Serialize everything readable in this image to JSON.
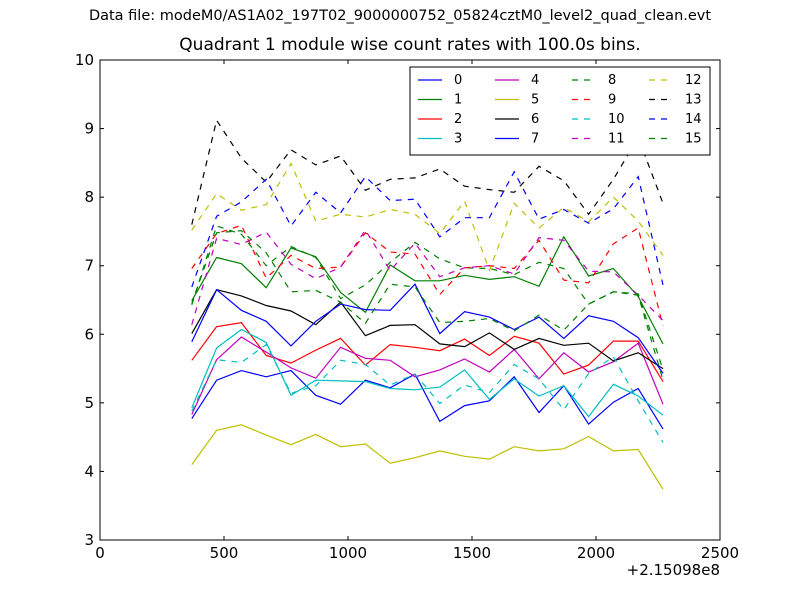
{
  "figure": {
    "suptitle": "Data file: modeM0/AS1A02_197T02_9000000752_05824cztM0_level2_quad_clean.evt"
  },
  "chart_data": {
    "type": "line",
    "title": "Quadrant 1 module wise count rates with 100.0s bins.",
    "xlabel": "",
    "ylabel": "",
    "x_offset_label": "+2.15098e8",
    "xlim": [
      0,
      2500
    ],
    "ylim": [
      3,
      10
    ],
    "xticks": [
      0,
      500,
      1000,
      1500,
      2000,
      2500
    ],
    "yticks": [
      3,
      4,
      5,
      6,
      7,
      8,
      9,
      10
    ],
    "grid": false,
    "legend": {
      "placement": "top-right",
      "columns": 4
    },
    "x": [
      370,
      470,
      570,
      670,
      770,
      870,
      970,
      1070,
      1170,
      1270,
      1370,
      1470,
      1570,
      1670,
      1770,
      1870,
      1970,
      2070,
      2170,
      2270
    ],
    "series": [
      {
        "name": "0",
        "color": "#0000ff",
        "dash": "solid",
        "values": [
          4.77,
          5.33,
          5.47,
          5.38,
          5.47,
          5.11,
          4.98,
          5.33,
          5.22,
          5.42,
          4.73,
          4.96,
          5.03,
          5.38,
          4.86,
          5.25,
          4.69,
          5.01,
          5.21,
          4.62
        ]
      },
      {
        "name": "1",
        "color": "#008000",
        "dash": "solid",
        "values": [
          6.49,
          7.12,
          7.03,
          6.68,
          7.26,
          7.13,
          6.61,
          6.32,
          7.01,
          6.78,
          6.78,
          6.86,
          6.8,
          6.84,
          6.7,
          7.42,
          6.85,
          6.96,
          6.55,
          5.86
        ]
      },
      {
        "name": "2",
        "color": "#ff0000",
        "dash": "solid",
        "values": [
          5.62,
          6.11,
          6.17,
          5.69,
          5.58,
          5.77,
          5.94,
          5.55,
          5.85,
          5.81,
          5.76,
          5.93,
          5.69,
          5.97,
          5.87,
          5.42,
          5.55,
          5.9,
          5.9,
          5.31
        ]
      },
      {
        "name": "3",
        "color": "#00bfbf",
        "dash": "solid",
        "values": [
          4.93,
          5.8,
          6.07,
          5.88,
          5.11,
          5.33,
          5.32,
          5.31,
          5.21,
          5.19,
          5.23,
          5.48,
          5.05,
          5.35,
          5.1,
          5.25,
          4.8,
          5.27,
          5.1,
          4.82
        ]
      },
      {
        "name": "4",
        "color": "#bf00bf",
        "dash": "solid",
        "values": [
          4.83,
          5.63,
          5.96,
          5.74,
          5.51,
          5.36,
          5.81,
          5.65,
          5.62,
          5.38,
          5.48,
          5.64,
          5.45,
          5.78,
          5.35,
          5.73,
          5.45,
          5.6,
          5.87,
          4.98
        ]
      },
      {
        "name": "5",
        "color": "#bfbf00",
        "dash": "solid",
        "values": [
          4.1,
          4.6,
          4.68,
          4.53,
          4.39,
          4.54,
          4.36,
          4.4,
          4.12,
          4.2,
          4.3,
          4.22,
          4.18,
          4.36,
          4.3,
          4.33,
          4.51,
          4.3,
          4.32,
          3.74
        ]
      },
      {
        "name": "6",
        "color": "#000000",
        "dash": "solid",
        "values": [
          6.01,
          6.65,
          6.56,
          6.42,
          6.34,
          6.14,
          6.47,
          5.98,
          6.13,
          6.14,
          5.86,
          5.82,
          6.02,
          5.78,
          5.94,
          5.84,
          5.87,
          5.61,
          5.73,
          5.5
        ]
      },
      {
        "name": "7",
        "color": "#0000ff",
        "dash": "solid",
        "values": [
          5.89,
          6.65,
          6.35,
          6.19,
          5.83,
          6.19,
          6.44,
          6.36,
          6.35,
          6.73,
          6.01,
          6.33,
          6.25,
          6.07,
          6.25,
          5.94,
          6.27,
          6.19,
          5.95,
          5.43
        ]
      },
      {
        "name": "8",
        "color": "#008000",
        "dash": "dashed",
        "values": [
          6.43,
          7.58,
          7.46,
          7.0,
          7.28,
          7.12,
          6.52,
          6.72,
          7.05,
          7.34,
          7.1,
          6.97,
          6.96,
          6.87,
          7.05,
          6.96,
          6.44,
          6.62,
          6.57,
          5.33
        ]
      },
      {
        "name": "9",
        "color": "#ff0000",
        "dash": "dashed",
        "values": [
          6.96,
          7.47,
          7.59,
          6.82,
          7.15,
          6.96,
          6.98,
          7.48,
          7.2,
          7.17,
          6.58,
          6.97,
          7.0,
          6.96,
          7.37,
          6.79,
          6.75,
          7.32,
          7.55,
          6.12
        ]
      },
      {
        "name": "10",
        "color": "#00bfbf",
        "dash": "dashed",
        "values": [
          4.88,
          5.63,
          5.59,
          5.85,
          5.14,
          5.25,
          5.62,
          5.56,
          5.26,
          5.42,
          4.99,
          5.26,
          5.15,
          5.56,
          5.35,
          4.9,
          5.43,
          5.67,
          5.03,
          4.42
        ]
      },
      {
        "name": "11",
        "color": "#bf00bf",
        "dash": "dashed",
        "values": [
          6.14,
          7.4,
          7.31,
          7.49,
          7.02,
          6.81,
          6.98,
          7.52,
          6.93,
          7.33,
          6.84,
          6.97,
          7.0,
          6.88,
          7.41,
          7.37,
          6.92,
          6.91,
          6.57,
          6.2
        ]
      },
      {
        "name": "12",
        "color": "#bfbf00",
        "dash": "dashed",
        "values": [
          7.52,
          8.05,
          7.81,
          7.89,
          8.49,
          7.65,
          7.75,
          7.71,
          7.82,
          7.75,
          7.47,
          7.94,
          6.93,
          7.91,
          7.55,
          7.85,
          7.64,
          8.0,
          7.65,
          7.15
        ]
      },
      {
        "name": "13",
        "color": "#000000",
        "dash": "dashed",
        "values": [
          7.6,
          9.12,
          8.57,
          8.22,
          8.69,
          8.47,
          8.6,
          8.1,
          8.26,
          8.28,
          8.41,
          8.16,
          8.11,
          8.07,
          8.45,
          8.24,
          7.75,
          8.26,
          8.87,
          7.91
        ]
      },
      {
        "name": "14",
        "color": "#0000ff",
        "dash": "dashed",
        "values": [
          6.69,
          7.72,
          7.93,
          8.26,
          7.58,
          8.07,
          7.77,
          8.3,
          7.95,
          7.97,
          7.42,
          7.7,
          7.7,
          8.37,
          7.68,
          7.82,
          7.62,
          7.83,
          8.3,
          6.72
        ]
      },
      {
        "name": "15",
        "color": "#008000",
        "dash": "dashed",
        "values": [
          6.45,
          7.48,
          7.51,
          7.19,
          6.62,
          6.64,
          6.47,
          6.16,
          6.73,
          6.69,
          6.17,
          6.19,
          6.23,
          6.05,
          6.28,
          6.06,
          6.44,
          6.62,
          6.59,
          5.48
        ]
      }
    ]
  }
}
